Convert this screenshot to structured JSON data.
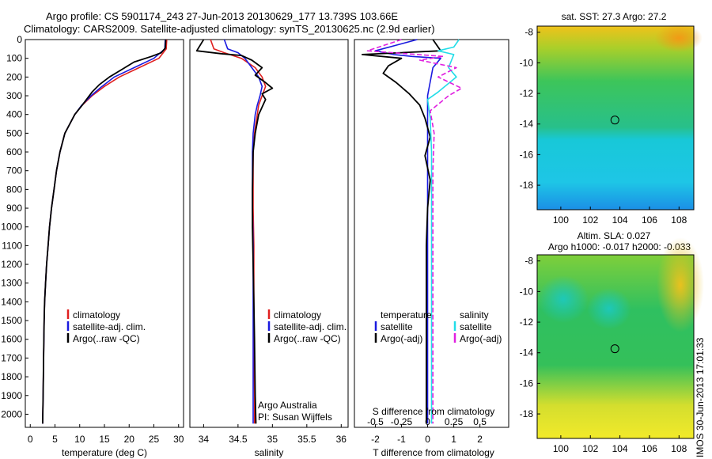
{
  "header": {
    "line1": "Argo profile: CS 5901174_243 27-Jun-2013 20130629_177 13.739S 103.66E",
    "line2": "Climatology: CARS2009. Satellite-adjusted climatology: synTS_20130625.nc (2.9d earlier)"
  },
  "stamp": "IMOS 30-Jun-2013 17:01:33",
  "colors": {
    "red": "#e02020",
    "blue": "#1a1adf",
    "black": "#000000",
    "cyan": "#22dde8",
    "magenta": "#e020e0"
  },
  "chart_data": [
    {
      "type": "line",
      "panel": "temperature",
      "xlabel": "temperature (deg C)",
      "ylabel": "",
      "xlim": [
        -1,
        31
      ],
      "ylim": [
        2070,
        0
      ],
      "xticks": [
        0,
        5,
        10,
        15,
        20,
        25,
        30
      ],
      "yticks": [
        0,
        100,
        200,
        300,
        400,
        500,
        600,
        700,
        800,
        900,
        1000,
        1100,
        1200,
        1300,
        1400,
        1500,
        1600,
        1700,
        1800,
        1900,
        2000
      ],
      "legend": [
        "climatology",
        "satellite-adj. clim.",
        "Argo(..raw -QC)"
      ],
      "series": [
        {
          "name": "climatology",
          "color": "red",
          "x": [
            27.6,
            27.5,
            26,
            22,
            18,
            15,
            12.5,
            10.5,
            9,
            8,
            7,
            6,
            5.3,
            4.8,
            4.3,
            3.9,
            3.6,
            3.3,
            3.1,
            2.9,
            2.8,
            2.7,
            2.6,
            2.5
          ],
          "y": [
            0,
            50,
            100,
            150,
            200,
            250,
            300,
            350,
            400,
            450,
            500,
            600,
            700,
            800,
            900,
            1000,
            1100,
            1200,
            1300,
            1400,
            1500,
            1700,
            1900,
            2050
          ]
        },
        {
          "name": "satellite-adj. clim.",
          "color": "blue",
          "x": [
            27.3,
            27.2,
            25,
            21,
            17,
            14.5,
            12.3,
            10.4,
            9,
            8,
            7,
            6,
            5.3,
            4.8,
            4.3,
            3.9,
            3.6,
            3.3,
            3.1,
            2.9,
            2.8,
            2.7,
            2.6,
            2.5
          ],
          "y": [
            0,
            50,
            100,
            150,
            200,
            250,
            300,
            350,
            400,
            450,
            500,
            600,
            700,
            800,
            900,
            1000,
            1100,
            1200,
            1300,
            1400,
            1500,
            1700,
            1900,
            2050
          ]
        },
        {
          "name": "Argo(..raw -QC)",
          "color": "black",
          "x": [
            27.4,
            27.3,
            26.5,
            24.5,
            21,
            18.5,
            16,
            14,
            12.5,
            10.5,
            9,
            8,
            7,
            6,
            5.3,
            4.8,
            4.3,
            3.9,
            3.6,
            3.3,
            3.1,
            2.9,
            2.8,
            2.7,
            2.6,
            2.5
          ],
          "y": [
            0,
            45,
            70,
            90,
            120,
            160,
            200,
            240,
            280,
            350,
            400,
            450,
            500,
            600,
            700,
            800,
            900,
            1000,
            1100,
            1200,
            1300,
            1400,
            1500,
            1700,
            1900,
            2050
          ]
        }
      ]
    },
    {
      "type": "line",
      "panel": "salinity",
      "xlabel": "salinity",
      "xlim": [
        33.8,
        36.1
      ],
      "ylim": [
        2070,
        0
      ],
      "xticks": [
        34,
        34.5,
        35,
        35.5,
        36
      ],
      "legend": [
        "climatology",
        "satellite-adj. clim.",
        "Argo(..raw -QC)"
      ],
      "annotation": [
        "Argo Australia",
        "PI: Susan Wijffels"
      ],
      "series": [
        {
          "name": "climatology",
          "color": "red",
          "x": [
            34.1,
            34.15,
            34.3,
            34.55,
            34.75,
            34.85,
            34.9,
            34.85,
            34.8,
            34.78,
            34.74,
            34.72,
            34.72,
            34.72,
            34.73,
            34.73,
            34.73,
            34.73,
            34.74,
            34.74,
            34.74
          ],
          "y": [
            0,
            50,
            70,
            100,
            150,
            200,
            250,
            300,
            350,
            400,
            500,
            600,
            700,
            900,
            1100,
            1300,
            1500,
            1700,
            1900,
            2000,
            2050
          ]
        },
        {
          "name": "satellite-adj. clim.",
          "color": "blue",
          "x": [
            34.3,
            34.35,
            34.5,
            34.6,
            34.7,
            34.8,
            34.85,
            34.82,
            34.78,
            34.75,
            34.72,
            34.71,
            34.71,
            34.71,
            34.72,
            34.72,
            34.72,
            34.72,
            34.72,
            34.72,
            34.72
          ],
          "y": [
            0,
            50,
            70,
            100,
            150,
            200,
            250,
            300,
            350,
            400,
            500,
            600,
            700,
            900,
            1100,
            1300,
            1500,
            1700,
            1900,
            2000,
            2050
          ]
        },
        {
          "name": "Argo(..raw -QC)",
          "color": "black",
          "x": [
            34.0,
            33.9,
            34.25,
            34.55,
            34.7,
            34.85,
            34.75,
            34.9,
            35.0,
            34.85,
            34.9,
            34.8,
            34.75,
            34.72,
            34.71,
            34.71,
            34.72,
            34.73,
            34.74,
            34.75,
            34.76
          ],
          "y": [
            0,
            60,
            75,
            85,
            110,
            150,
            190,
            230,
            260,
            290,
            320,
            400,
            500,
            600,
            800,
            1000,
            1200,
            1400,
            1600,
            1900,
            2050
          ]
        }
      ]
    },
    {
      "type": "line",
      "panel": "difference",
      "xlabel": "T difference from climatology",
      "xlabel_top": "S difference from climatology",
      "xlim": [
        -2.8,
        3.1
      ],
      "ylim": [
        2070,
        0
      ],
      "xticks": [
        -2,
        -1,
        0,
        1,
        2
      ],
      "xtick_labels_top": [
        "-0.5",
        "-0.25",
        "0",
        "0.25",
        "0.5"
      ],
      "xtick_top_positions": [
        -2,
        -1,
        0,
        1,
        2
      ],
      "legend_left": {
        "heading": "temperature",
        "items": [
          "satellite",
          "Argo(-adj)"
        ]
      },
      "legend_right": {
        "heading": "salinity",
        "items": [
          "satellite",
          "Argo(-adj)"
        ]
      },
      "series": [
        {
          "name": "temperature satellite",
          "color": "blue",
          "x": [
            -0.4,
            -2.0,
            -1.3,
            -0.6,
            0.5,
            0.2,
            0,
            0,
            0,
            0,
            0,
            0,
            0,
            0
          ],
          "y": [
            0,
            60,
            80,
            90,
            100,
            150,
            300,
            500,
            800,
            1100,
            1400,
            1700,
            2000,
            2050
          ]
        },
        {
          "name": "temperature Argo(-adj)",
          "color": "black",
          "x": [
            0.2,
            0.5,
            -2.5,
            -1.0,
            -1.5,
            -1.7,
            -1.2,
            -0.7,
            -0.3,
            -0.1,
            0.1,
            -0.1,
            0.1,
            0,
            -0.05,
            -0.05,
            -0.05,
            -0.05
          ],
          "y": [
            0,
            60,
            80,
            100,
            140,
            180,
            230,
            290,
            350,
            420,
            520,
            620,
            750,
            900,
            1100,
            1400,
            1700,
            2050
          ]
        },
        {
          "name": "salinity satellite",
          "color": "cyan",
          "x": [
            1.2,
            1.0,
            0.4,
            1.0,
            0.8,
            1.1,
            0.4,
            0.0,
            0.1,
            0.15,
            0.15,
            0.15,
            0.15,
            0.15,
            0.15
          ],
          "y": [
            0,
            40,
            60,
            80,
            150,
            200,
            280,
            320,
            420,
            600,
            900,
            1200,
            1500,
            1800,
            2050
          ]
        },
        {
          "name": "salinity Argo(-adj)",
          "color": "magenta",
          "x": [
            -1.0,
            -2.3,
            0.6,
            -0.3,
            1.1,
            0.4,
            1.3,
            0.8,
            0.1,
            0.25,
            0.2,
            0.2,
            0.2,
            0.2,
            0.2
          ],
          "y": [
            0,
            60,
            90,
            110,
            150,
            200,
            260,
            300,
            380,
            500,
            700,
            1000,
            1300,
            1600,
            2050
          ]
        }
      ]
    },
    {
      "type": "heatmap",
      "panel": "sst_map",
      "title": "sat. SST: 27.3 Argo: 27.2",
      "xticks": [
        100,
        102,
        104,
        106,
        108
      ],
      "yticks": [
        -8,
        -10,
        -12,
        -14,
        -16,
        -18
      ],
      "xlim": [
        98.4,
        109
      ],
      "ylim": [
        -19.6,
        -7.6
      ],
      "argo_position": [
        103.66,
        -13.739
      ]
    },
    {
      "type": "heatmap",
      "panel": "sla_map",
      "title": "Altim. SLA: 0.027",
      "subtitle": "Argo h1000: -0.017 h2000: -0.033",
      "xticks": [
        100,
        102,
        104,
        106,
        108
      ],
      "yticks": [
        -8,
        -10,
        -12,
        -14,
        -16,
        -18
      ],
      "xlim": [
        98.4,
        109
      ],
      "ylim": [
        -19.6,
        -7.6
      ],
      "argo_position": [
        103.66,
        -13.739
      ]
    }
  ]
}
